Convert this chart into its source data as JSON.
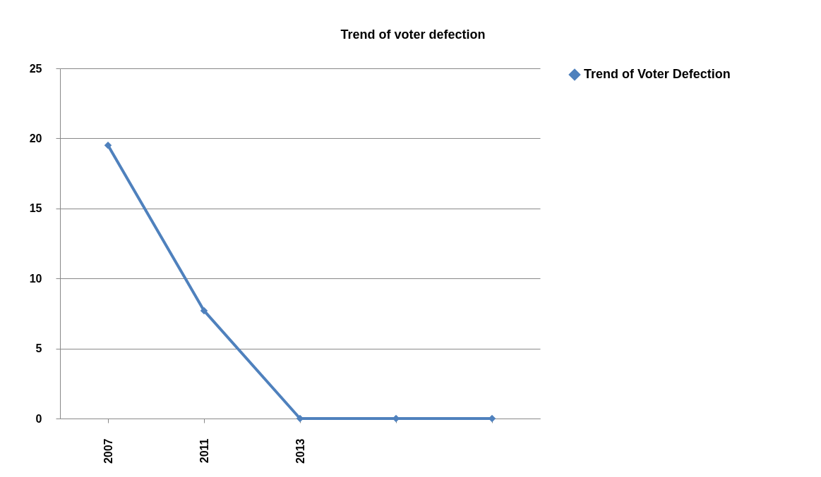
{
  "chart_data": {
    "type": "line",
    "title": "Trend of voter defection",
    "categories": [
      "2007",
      "2011",
      "2013",
      null,
      null
    ],
    "series": [
      {
        "name": "Trend of Voter Defection",
        "color": "#4f81bd",
        "values": [
          19.5,
          7.7,
          0,
          0,
          0
        ]
      }
    ],
    "ylim": [
      0,
      25
    ],
    "yticks": [
      0,
      5,
      10,
      15,
      20,
      25
    ],
    "grid": "y",
    "legend": "right",
    "marker": "diamond",
    "line_style": "solid"
  }
}
